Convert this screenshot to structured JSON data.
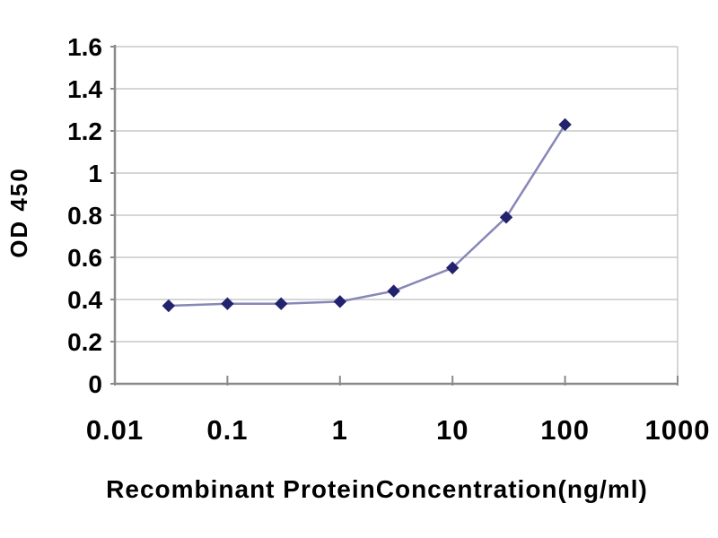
{
  "chart_data": {
    "type": "line",
    "title": "",
    "xlabel": "Recombinant ProteinConcentration(ng/ml)",
    "ylabel": "OD 450",
    "x_scale": "log",
    "x": [
      0.03,
      0.1,
      0.3,
      1,
      3,
      10,
      30,
      100
    ],
    "y": [
      0.37,
      0.38,
      0.38,
      0.39,
      0.44,
      0.55,
      0.79,
      1.23
    ],
    "x_tick_values": [
      0.01,
      0.1,
      1,
      10,
      100,
      1000
    ],
    "x_tick_labels": [
      "0.01",
      "0.1",
      "1",
      "10",
      "100",
      "1000"
    ],
    "y_tick_values": [
      0,
      0.2,
      0.4,
      0.6,
      0.8,
      1.0,
      1.2,
      1.4,
      1.6
    ],
    "y_tick_labels": [
      "0",
      "0.2",
      "0.4",
      "0.6",
      "0.8",
      "1",
      "1.2",
      "1.4",
      "1.6"
    ],
    "xlim": [
      0.01,
      1000
    ],
    "ylim": [
      0,
      1.6
    ],
    "grid": "horizontal-only",
    "legend": false,
    "marker_shape": "diamond",
    "colors": {
      "marker": "#22226e",
      "line": "#8787b8",
      "gridline": "#c9c9c9",
      "axis": "#8a8a8a",
      "text": "#000000",
      "background": "#ffffff"
    }
  }
}
